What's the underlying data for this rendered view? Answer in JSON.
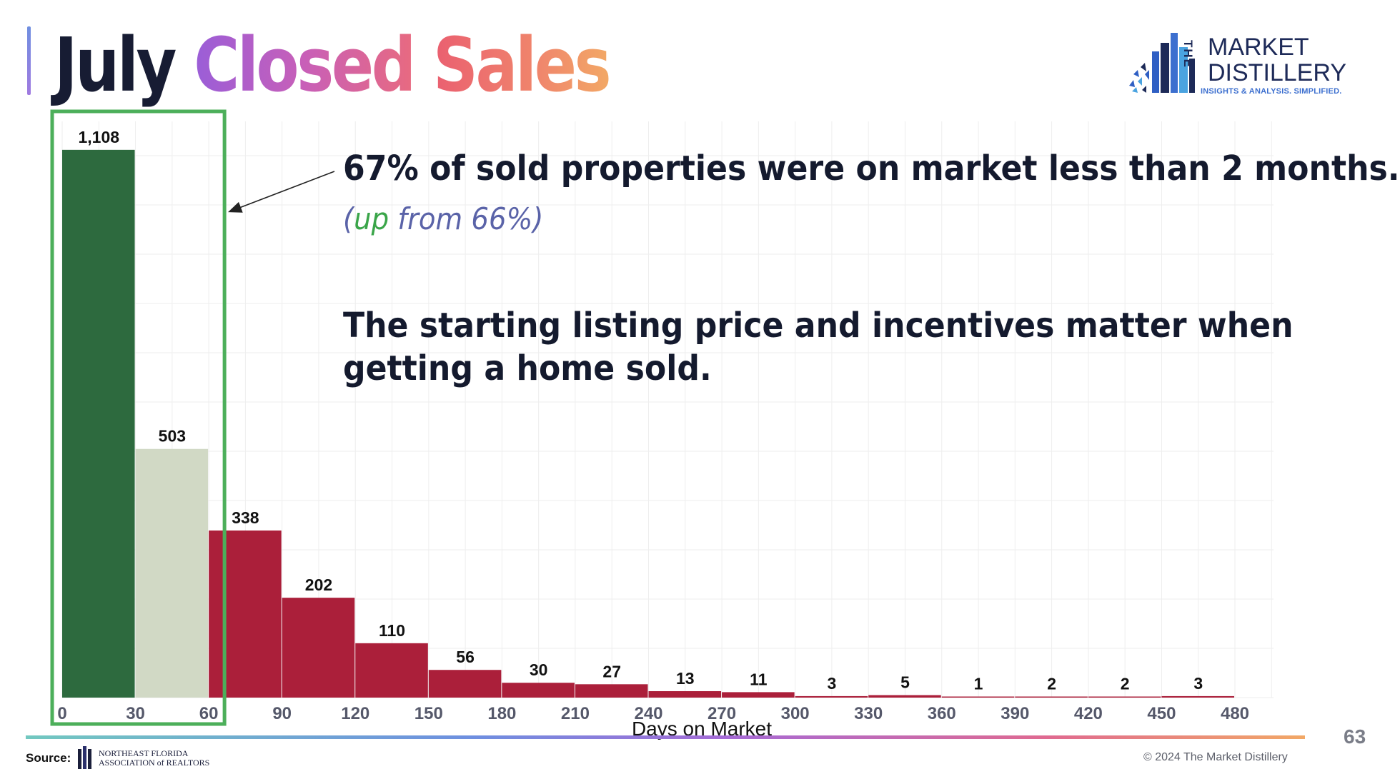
{
  "title": {
    "word1": "July",
    "word2": "Closed",
    "word3": "Sales"
  },
  "logo": {
    "the": "THE",
    "line1": "MARKET",
    "line2": "DISTILLERY",
    "tagline": "INSIGHTS & ANALYSIS. SIMPLIFIED."
  },
  "annotation": {
    "headline": "67% of sold properties were on market less than 2 months.",
    "sub_open": "(",
    "sub_highlight": "up",
    "sub_rest": " from 66%)",
    "body": "The starting listing price and incentives matter when getting a home sold."
  },
  "chart_data": {
    "type": "bar",
    "xlabel": "Days on Market",
    "ylabel": "",
    "x_ticks": [
      0,
      30,
      60,
      90,
      120,
      150,
      180,
      210,
      240,
      270,
      300,
      330,
      360,
      390,
      420,
      450,
      480
    ],
    "bins": [
      {
        "start": 0,
        "end": 30,
        "value": 1108,
        "label": "1,108"
      },
      {
        "start": 30,
        "end": 60,
        "value": 503,
        "label": "503"
      },
      {
        "start": 60,
        "end": 90,
        "value": 338,
        "label": "338"
      },
      {
        "start": 90,
        "end": 120,
        "value": 202,
        "label": "202"
      },
      {
        "start": 120,
        "end": 150,
        "value": 110,
        "label": "110"
      },
      {
        "start": 150,
        "end": 180,
        "value": 56,
        "label": "56"
      },
      {
        "start": 180,
        "end": 210,
        "value": 30,
        "label": "30"
      },
      {
        "start": 210,
        "end": 240,
        "value": 27,
        "label": "27"
      },
      {
        "start": 240,
        "end": 270,
        "value": 13,
        "label": "13"
      },
      {
        "start": 270,
        "end": 300,
        "value": 11,
        "label": "11"
      },
      {
        "start": 300,
        "end": 330,
        "value": 3,
        "label": "3"
      },
      {
        "start": 330,
        "end": 360,
        "value": 5,
        "label": "5"
      },
      {
        "start": 360,
        "end": 390,
        "value": 1,
        "label": "1"
      },
      {
        "start": 390,
        "end": 420,
        "value": 2,
        "label": "2"
      },
      {
        "start": 420,
        "end": 450,
        "value": 2,
        "label": "2"
      },
      {
        "start": 450,
        "end": 480,
        "value": 3,
        "label": "3"
      }
    ],
    "xlim": [
      0,
      480
    ],
    "ylim": [
      0,
      1180
    ],
    "grid": true,
    "highlight_range": [
      0,
      60
    ],
    "colors": {
      "first": "#2d6a3e",
      "second": "#d1d9c5",
      "rest": "#ab1f3a",
      "highlight_box": "#4caf5a"
    }
  },
  "footer": {
    "source_label": "Source:",
    "source_org_line1": "NORTHEAST FLORIDA",
    "source_org_line2": "ASSOCIATION of REALTORS",
    "copyright": "© 2024 The Market Distillery",
    "page_number": "63"
  }
}
